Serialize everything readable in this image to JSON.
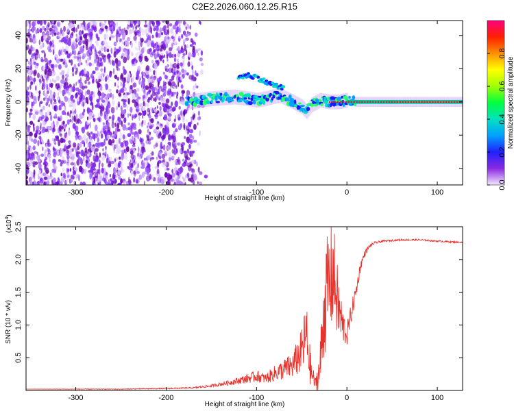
{
  "title": "C2E2.2026.060.12.25.R15",
  "colors": {
    "snr_line": "#e8332d",
    "scatter_noise": "#7a1ff0",
    "track_core": "#e02020"
  },
  "chart_data": [
    {
      "type": "heatmap",
      "name": "spectrogram",
      "xlabel": "Height of straight line (km)",
      "ylabel": "Frequency (Hz)",
      "xlim": [
        -355,
        128
      ],
      "ylim": [
        -50,
        49
      ],
      "xticks": [
        -300,
        -200,
        -100,
        0,
        100
      ],
      "yticks": [
        -40,
        -20,
        0,
        20,
        40
      ],
      "xtick_labels": [
        "-300",
        "-200",
        "-100",
        "0",
        "100"
      ],
      "ytick_labels": [
        "-40",
        "-20",
        "0",
        "20",
        "40"
      ],
      "noise_region_x": [
        -355,
        -155
      ],
      "track_center": {
        "x": [
          -175,
          -150,
          -125,
          -110,
          -100,
          -90,
          -75,
          -60,
          -50,
          -45,
          -40,
          -30,
          -20,
          -10,
          0,
          10,
          50,
          100,
          128
        ],
        "y": [
          0,
          2,
          3,
          2,
          1,
          2,
          4,
          0,
          -3,
          -6,
          -2,
          1,
          0,
          0,
          1,
          0,
          0,
          0,
          0
        ]
      },
      "upper_branch": {
        "x": [
          -120,
          -110,
          -100,
          -90,
          -80,
          -70
        ],
        "y": [
          15,
          16,
          15,
          12,
          10,
          8
        ]
      },
      "colorbar": {
        "label": "Normalized spectral amplitude",
        "range": [
          0,
          1
        ],
        "ticks": [
          0.0,
          0.2,
          0.4,
          0.6,
          0.8
        ],
        "tick_labels": [
          "0.0",
          "0.2",
          "0.4",
          "0.6",
          "0.8"
        ]
      }
    },
    {
      "type": "line",
      "name": "snr",
      "xlabel": "Height of straight line (km)",
      "ylabel": "SNR (10 * v/v)",
      "yscale_label": "(x10",
      "yscale_exp": "4",
      "yscale_close": ")",
      "xlim": [
        -355,
        128
      ],
      "ylim": [
        0,
        2.5
      ],
      "xticks": [
        -300,
        -200,
        -100,
        0,
        100
      ],
      "yticks": [
        0.5,
        1.0,
        1.5,
        2.0,
        2.5
      ],
      "xtick_labels": [
        "-300",
        "-200",
        "-100",
        "0",
        "100"
      ],
      "ytick_labels": [
        "0.5",
        "1.0",
        "1.5",
        "2.0",
        "2.5"
      ],
      "x": [
        -355,
        -300,
        -250,
        -200,
        -170,
        -150,
        -130,
        -110,
        -100,
        -90,
        -80,
        -70,
        -60,
        -50,
        -45,
        -40,
        -35,
        -30,
        -25,
        -20,
        -15,
        -10,
        -5,
        0,
        5,
        10,
        15,
        20,
        25,
        30,
        40,
        60,
        80,
        100,
        128
      ],
      "y": [
        0.02,
        0.02,
        0.02,
        0.03,
        0.04,
        0.07,
        0.12,
        0.18,
        0.22,
        0.18,
        0.26,
        0.32,
        0.38,
        0.6,
        0.85,
        0.3,
        0.1,
        0.3,
        1.3,
        1.6,
        1.8,
        1.3,
        1.0,
        0.85,
        1.2,
        1.5,
        1.9,
        2.1,
        2.2,
        2.25,
        2.28,
        2.3,
        2.3,
        2.28,
        2.26
      ],
      "noise_amplitude": [
        0.0,
        0.005,
        0.005,
        0.008,
        0.01,
        0.02,
        0.04,
        0.07,
        0.09,
        0.08,
        0.12,
        0.16,
        0.2,
        0.35,
        0.55,
        0.25,
        0.08,
        0.35,
        0.8,
        0.9,
        0.8,
        0.55,
        0.3,
        0.18,
        0.15,
        0.12,
        0.08,
        0.05,
        0.03,
        0.02,
        0.015,
        0.012,
        0.012,
        0.012,
        0.012
      ]
    }
  ]
}
